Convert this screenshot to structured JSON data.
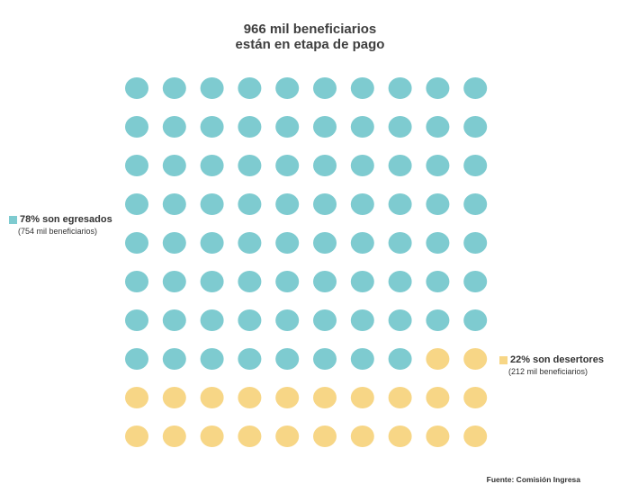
{
  "title": {
    "line1": "966 mil beneficiarios",
    "line2": "están en etapa de pago"
  },
  "colors": {
    "egresados": "#7ecbd0",
    "desertores": "#f7d686"
  },
  "legend": {
    "egresados": {
      "label": "78% son egresados",
      "sub": "(754 mil beneficiarios)"
    },
    "desertores": {
      "label": "22% son desertores",
      "sub": "(212 mil beneficiarios)"
    }
  },
  "source": "Fuente: Comisión Ingresa",
  "chart_data": {
    "type": "waffle",
    "grid": {
      "rows": 10,
      "cols": 10
    },
    "total_units": 100,
    "series": [
      {
        "name": "egresados",
        "percent": 78,
        "value_mil": 754
      },
      {
        "name": "desertores",
        "percent": 22,
        "value_mil": 212
      }
    ],
    "total_mil": 966
  }
}
